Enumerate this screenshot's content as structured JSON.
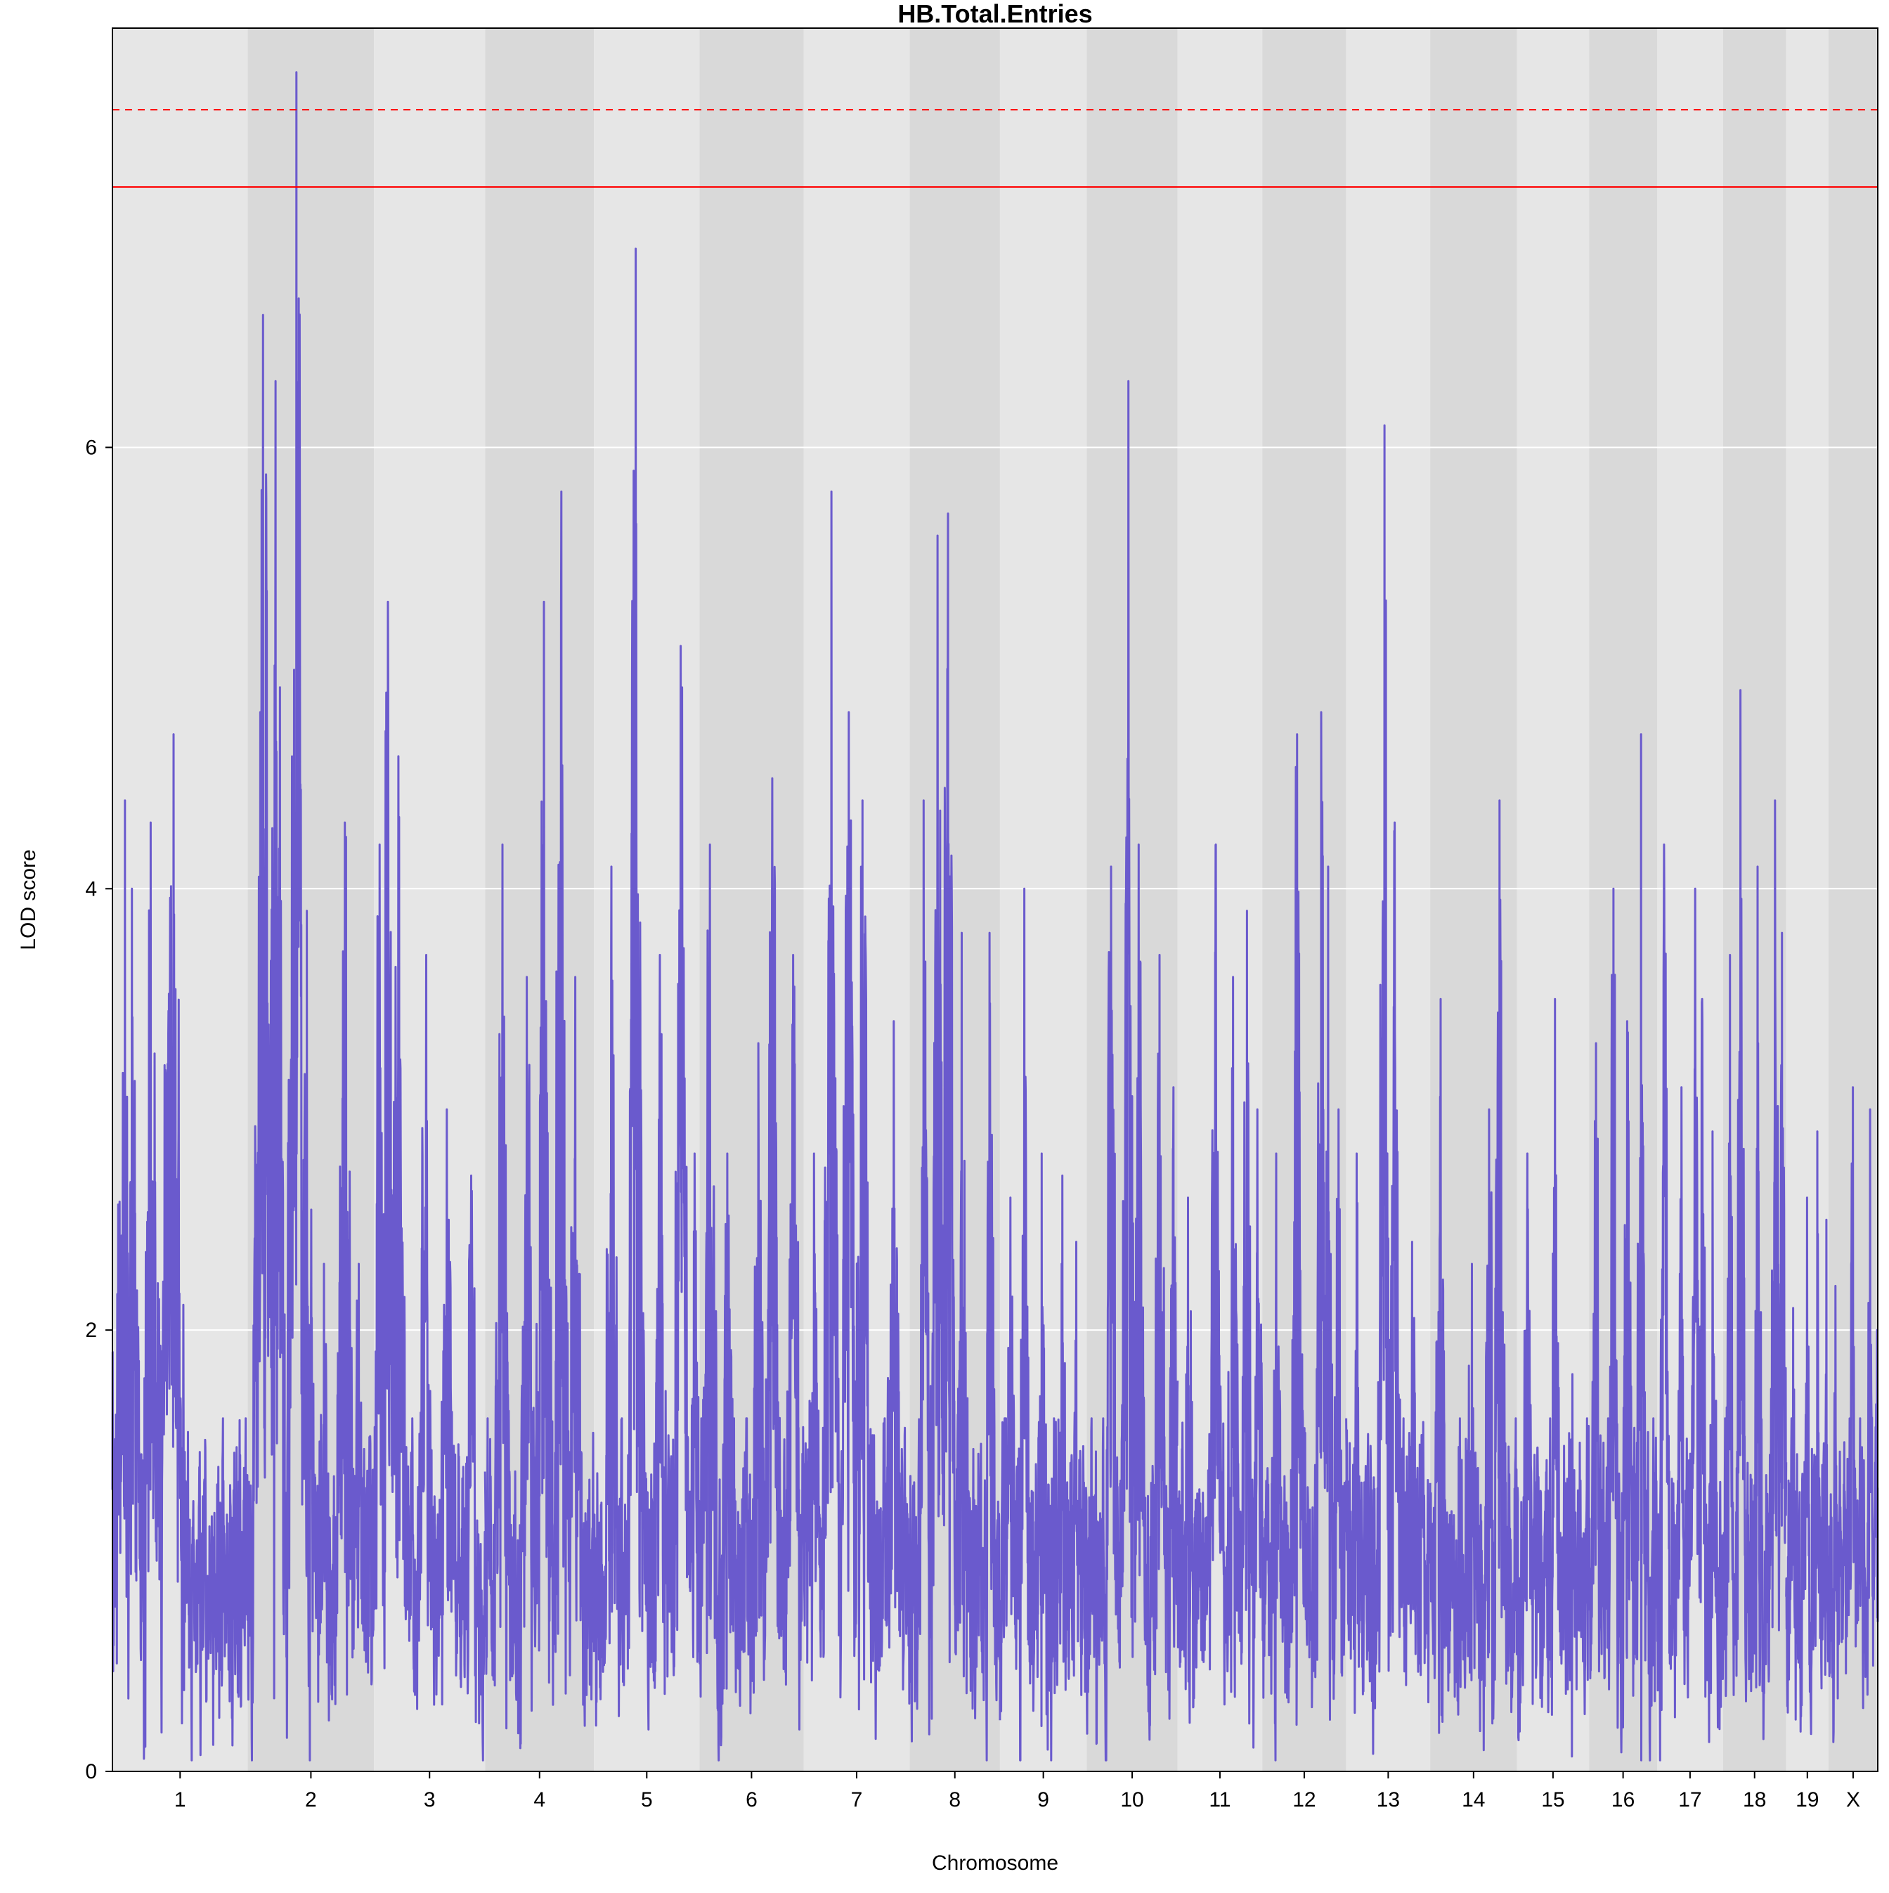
{
  "chart_data": {
    "type": "line",
    "title": "HB.Total.Entries",
    "xlabel": "Chromosome",
    "ylabel": "LOD score",
    "ylim": [
      0,
      7.9
    ],
    "yticks": [
      0,
      2,
      4,
      6
    ],
    "grid": "horizontal",
    "background_bands": [
      "#e6e6e6",
      "#d9d9d9"
    ],
    "line_color": "#6a5acd",
    "threshold_color": "#ff0000",
    "thresholds": [
      {
        "value": 7.18,
        "style": "solid"
      },
      {
        "value": 7.53,
        "style": "dashed"
      }
    ],
    "chromosomes": [
      {
        "name": "1",
        "length": 195,
        "peaks": [
          [
            0.5,
            1.9
          ],
          [
            18,
            4.4
          ],
          [
            28,
            4.0
          ],
          [
            55,
            4.3
          ],
          [
            75,
            3.2
          ],
          [
            88,
            4.7
          ],
          [
            95,
            2.9
          ]
        ]
      },
      {
        "name": "2",
        "length": 182,
        "peaks": [
          [
            18,
            4.8
          ],
          [
            22,
            6.6
          ],
          [
            40,
            6.3
          ],
          [
            70,
            7.7
          ],
          [
            85,
            3.9
          ],
          [
            110,
            2.3
          ],
          [
            140,
            4.3
          ],
          [
            160,
            2.3
          ]
        ]
      },
      {
        "name": "3",
        "length": 160,
        "peaks": [
          [
            8,
            4.2
          ],
          [
            20,
            5.3
          ],
          [
            35,
            4.6
          ],
          [
            75,
            3.7
          ],
          [
            105,
            3.0
          ],
          [
            140,
            2.7
          ]
        ]
      },
      {
        "name": "4",
        "length": 157,
        "peaks": [
          [
            25,
            4.2
          ],
          [
            60,
            3.6
          ],
          [
            85,
            5.3
          ],
          [
            110,
            5.8
          ],
          [
            130,
            3.6
          ]
        ]
      },
      {
        "name": "5",
        "length": 152,
        "peaks": [
          [
            25,
            4.1
          ],
          [
            60,
            6.9
          ],
          [
            95,
            3.7
          ],
          [
            125,
            5.1
          ],
          [
            145,
            2.8
          ]
        ]
      },
      {
        "name": "6",
        "length": 150,
        "peaks": [
          [
            15,
            4.2
          ],
          [
            40,
            2.8
          ],
          [
            85,
            3.3
          ],
          [
            105,
            4.5
          ],
          [
            135,
            3.7
          ]
        ]
      },
      {
        "name": "7",
        "length": 153,
        "peaks": [
          [
            15,
            2.8
          ],
          [
            40,
            5.8
          ],
          [
            65,
            4.8
          ],
          [
            85,
            4.4
          ],
          [
            130,
            3.4
          ]
        ]
      },
      {
        "name": "8",
        "length": 130,
        "peaks": [
          [
            20,
            4.4
          ],
          [
            40,
            5.6
          ],
          [
            55,
            5.7
          ],
          [
            75,
            3.8
          ],
          [
            115,
            3.8
          ]
        ]
      },
      {
        "name": "9",
        "length": 125,
        "peaks": [
          [
            15,
            2.6
          ],
          [
            35,
            4.0
          ],
          [
            60,
            2.8
          ],
          [
            90,
            2.7
          ],
          [
            110,
            2.4
          ]
        ]
      },
      {
        "name": "10",
        "length": 131,
        "peaks": [
          [
            35,
            4.1
          ],
          [
            60,
            6.3
          ],
          [
            75,
            4.2
          ],
          [
            105,
            3.7
          ],
          [
            125,
            3.1
          ]
        ]
      },
      {
        "name": "11",
        "length": 122,
        "peaks": [
          [
            15,
            2.6
          ],
          [
            55,
            4.2
          ],
          [
            80,
            3.6
          ],
          [
            100,
            3.9
          ],
          [
            115,
            3.0
          ]
        ]
      },
      {
        "name": "12",
        "length": 121,
        "peaks": [
          [
            20,
            2.8
          ],
          [
            50,
            4.7
          ],
          [
            85,
            4.8
          ],
          [
            95,
            4.1
          ],
          [
            110,
            3.0
          ]
        ]
      },
      {
        "name": "13",
        "length": 121,
        "peaks": [
          [
            15,
            2.8
          ],
          [
            55,
            6.1
          ],
          [
            70,
            4.3
          ],
          [
            95,
            2.4
          ]
        ]
      },
      {
        "name": "14",
        "length": 125,
        "peaks": [
          [
            15,
            3.5
          ],
          [
            60,
            2.3
          ],
          [
            85,
            3.0
          ],
          [
            100,
            4.4
          ],
          [
            115,
            1.1
          ]
        ]
      },
      {
        "name": "15",
        "length": 104,
        "peaks": [
          [
            15,
            2.8
          ],
          [
            55,
            3.5
          ],
          [
            80,
            1.8
          ]
        ]
      },
      {
        "name": "16",
        "length": 98,
        "peaks": [
          [
            10,
            3.3
          ],
          [
            35,
            4.0
          ],
          [
            55,
            3.4
          ],
          [
            75,
            4.7
          ]
        ]
      },
      {
        "name": "17",
        "length": 95,
        "peaks": [
          [
            10,
            4.2
          ],
          [
            35,
            3.1
          ],
          [
            55,
            4.0
          ],
          [
            65,
            3.5
          ],
          [
            80,
            2.9
          ]
        ]
      },
      {
        "name": "18",
        "length": 91,
        "peaks": [
          [
            10,
            3.7
          ],
          [
            25,
            4.9
          ],
          [
            50,
            4.1
          ],
          [
            75,
            4.4
          ],
          [
            85,
            3.8
          ]
        ]
      },
      {
        "name": "19",
        "length": 61,
        "peaks": [
          [
            10,
            2.1
          ],
          [
            30,
            2.6
          ],
          [
            45,
            2.9
          ],
          [
            58,
            2.5
          ]
        ]
      },
      {
        "name": "X",
        "length": 71,
        "peaks": [
          [
            10,
            2.2
          ],
          [
            35,
            3.1
          ],
          [
            60,
            3.0
          ],
          [
            70,
            2.0
          ]
        ]
      }
    ]
  }
}
